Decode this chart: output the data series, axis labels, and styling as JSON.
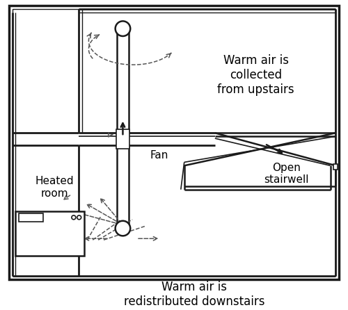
{
  "bg_color": "#ffffff",
  "line_color": "#1a1a1a",
  "dashed_color": "#555555",
  "text_color": "#000000",
  "title_bottom": "Warm air is\nredistributed downstairs",
  "title_upper_right": "Warm air is\ncollected\nfrom upstairs",
  "label_fan": "Fan",
  "label_heated": "Heated\nroom",
  "label_stairwell": "Open\nstairwell",
  "fig_width": 5.0,
  "fig_height": 4.46,
  "dpi": 100
}
